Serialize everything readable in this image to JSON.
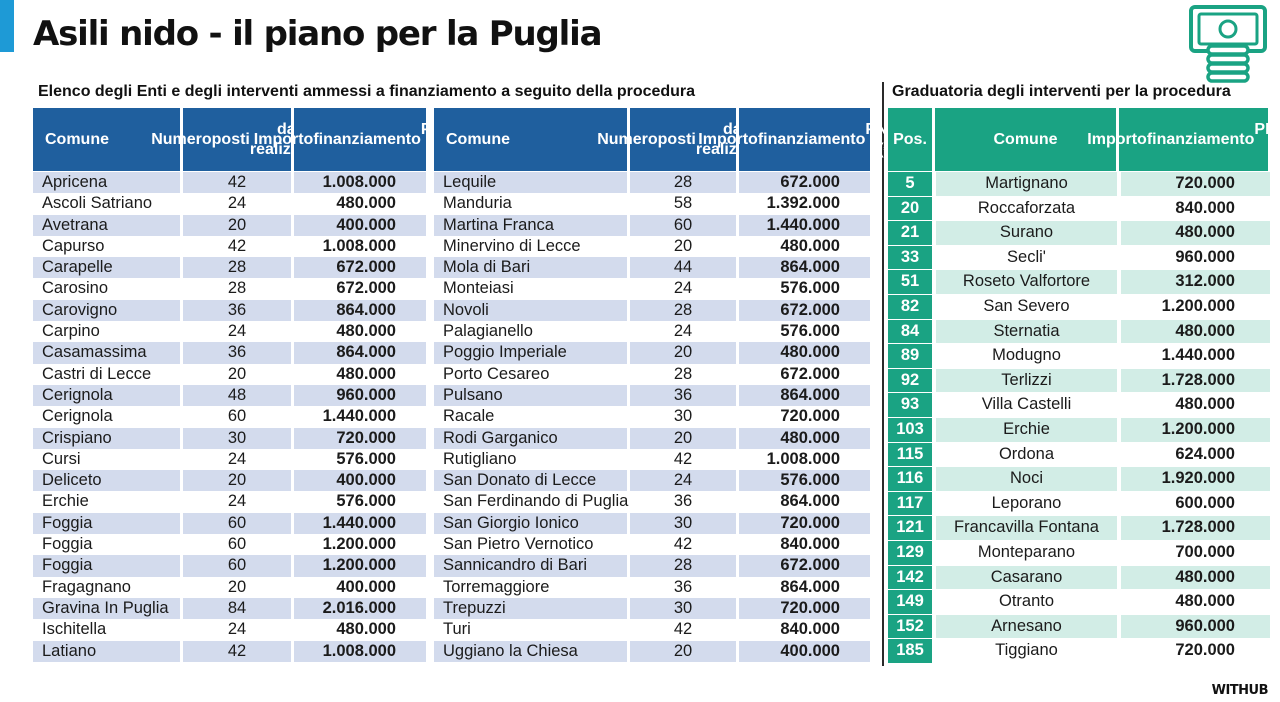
{
  "title": "Asili nido - il piano per la Puglia",
  "left_heading": "Elenco degli Enti e degli interventi ammessi a finanziamento a seguito della procedura",
  "right_heading": "Graduatoria degli interventi per la procedura",
  "left_columns": {
    "comune": "Comune",
    "posti": [
      "Numero",
      "posti",
      "da realizzare"
    ],
    "importo": [
      "Importo",
      "finanziamento",
      "PNRR (€)"
    ]
  },
  "right_columns": {
    "pos": "Pos.",
    "comune": "Comune",
    "importo": [
      "Importo",
      "finanziamento",
      "PNRR (€)"
    ]
  },
  "left_rows_a": [
    [
      "Apricena",
      "42",
      "1.008.000"
    ],
    [
      "Ascoli Satriano",
      "24",
      "480.000"
    ],
    [
      "Avetrana",
      "20",
      "400.000"
    ],
    [
      "Capurso",
      "42",
      "1.008.000"
    ],
    [
      "Carapelle",
      "28",
      "672.000"
    ],
    [
      "Carosino",
      "28",
      "672.000"
    ],
    [
      "Carovigno",
      "36",
      "864.000"
    ],
    [
      "Carpino",
      "24",
      "480.000"
    ],
    [
      "Casamassima",
      "36",
      "864.000"
    ],
    [
      "Castri di Lecce",
      "20",
      "480.000"
    ],
    [
      "Cerignola",
      "48",
      "960.000"
    ],
    [
      "Cerignola",
      "60",
      "1.440.000"
    ],
    [
      "Crispiano",
      "30",
      "720.000"
    ],
    [
      "Cursi",
      "24",
      "576.000"
    ],
    [
      "Deliceto",
      "20",
      "400.000"
    ],
    [
      "Erchie",
      "24",
      "576.000"
    ],
    [
      "Foggia",
      "60",
      "1.440.000"
    ],
    [
      "Foggia",
      "60",
      "1.200.000"
    ],
    [
      "Foggia",
      "60",
      "1.200.000"
    ],
    [
      "Fragagnano",
      "20",
      "400.000"
    ],
    [
      "Gravina In Puglia",
      "84",
      "2.016.000"
    ],
    [
      "Ischitella",
      "24",
      "480.000"
    ],
    [
      "Latiano",
      "42",
      "1.008.000"
    ]
  ],
  "left_rows_b": [
    [
      "Lequile",
      "28",
      "672.000"
    ],
    [
      "Manduria",
      "58",
      "1.392.000"
    ],
    [
      "Martina Franca",
      "60",
      "1.440.000"
    ],
    [
      "Minervino di Lecce",
      "20",
      "480.000"
    ],
    [
      "Mola di Bari",
      "44",
      "864.000"
    ],
    [
      "Monteiasi",
      "24",
      "576.000"
    ],
    [
      "Novoli",
      "28",
      "672.000"
    ],
    [
      "Palagianello",
      "24",
      "576.000"
    ],
    [
      "Poggio Imperiale",
      "20",
      "480.000"
    ],
    [
      "Porto Cesareo",
      "28",
      "672.000"
    ],
    [
      "Pulsano",
      "36",
      "864.000"
    ],
    [
      "Racale",
      "30",
      "720.000"
    ],
    [
      "Rodi Garganico",
      "20",
      "480.000"
    ],
    [
      "Rutigliano",
      "42",
      "1.008.000"
    ],
    [
      "San Donato di Lecce",
      "24",
      "576.000"
    ],
    [
      "San Ferdinando di Puglia",
      "36",
      "864.000"
    ],
    [
      "San Giorgio Ionico",
      "30",
      "720.000"
    ],
    [
      "San Pietro Vernotico",
      "42",
      "840.000"
    ],
    [
      "Sannicandro di Bari",
      "28",
      "672.000"
    ],
    [
      "Torremaggiore",
      "36",
      "864.000"
    ],
    [
      "Trepuzzi",
      "30",
      "720.000"
    ],
    [
      "Turi",
      "42",
      "840.000"
    ],
    [
      "Uggiano la Chiesa",
      "20",
      "400.000"
    ]
  ],
  "rank_rows": [
    [
      "5",
      "Martignano",
      "720.000"
    ],
    [
      "20",
      "Roccaforzata",
      "840.000"
    ],
    [
      "21",
      "Surano",
      "480.000"
    ],
    [
      "33",
      "Secli'",
      "960.000"
    ],
    [
      "51",
      "Roseto Valfortore",
      "312.000"
    ],
    [
      "82",
      "San Severo",
      "1.200.000"
    ],
    [
      "84",
      "Sternatia",
      "480.000"
    ],
    [
      "89",
      "Modugno",
      "1.440.000"
    ],
    [
      "92",
      "Terlizzi",
      "1.728.000"
    ],
    [
      "93",
      "Villa Castelli",
      "480.000"
    ],
    [
      "103",
      "Erchie",
      "1.200.000"
    ],
    [
      "115",
      "Ordona",
      "624.000"
    ],
    [
      "116",
      "Noci",
      "1.920.000"
    ],
    [
      "117",
      "Leporano",
      "600.000"
    ],
    [
      "121",
      "Francavilla Fontana",
      "1.728.000"
    ],
    [
      "129",
      "Monteparano",
      "700.000"
    ],
    [
      "142",
      "Casarano",
      "480.000"
    ],
    [
      "149",
      "Otranto",
      "480.000"
    ],
    [
      "152",
      "Arnesano",
      "960.000"
    ],
    [
      "185",
      "Tiggiano",
      "720.000"
    ]
  ],
  "brand": "WITHUB",
  "icon": "money-stack-icon",
  "colors": {
    "accent_blue": "#1e9ad6",
    "left_header": "#1f5f9e",
    "left_stripe": "#d3dbed",
    "right_header": "#1aa383",
    "right_stripe": "#d2ede6"
  }
}
